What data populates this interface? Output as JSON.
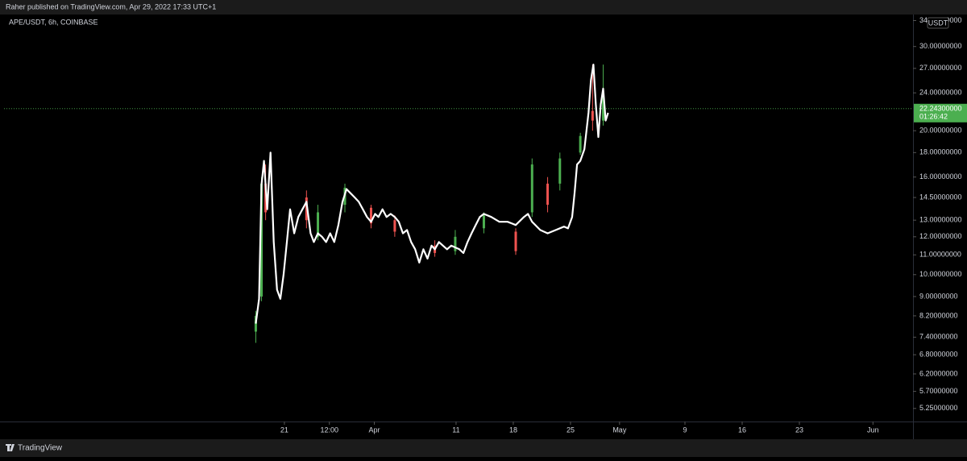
{
  "header": {
    "publisher": "Raher published on TradingView.com, Apr 29, 2022 17:33 UTC+1"
  },
  "footer": {
    "brand": "TradingView"
  },
  "chart_data": {
    "type": "candlestick",
    "title": "APE/USDT, 6h, COINBASE",
    "currency": "USDT",
    "log_scale": true,
    "up_color": "#4caf50",
    "down_color": "#ef5350",
    "ylim": [
      4.93,
      35.0
    ],
    "yticks": [
      {
        "value": 34,
        "label": "34.00000000"
      },
      {
        "value": 30,
        "label": "30.00000000"
      },
      {
        "value": 27,
        "label": "27.00000000"
      },
      {
        "value": 24,
        "label": "24.00000000"
      },
      {
        "value": 20,
        "label": "20.00000000"
      },
      {
        "value": 18,
        "label": "18.00000000"
      },
      {
        "value": 16,
        "label": "16.00000000"
      },
      {
        "value": 14.5,
        "label": "14.50000000"
      },
      {
        "value": 13,
        "label": "13.00000000"
      },
      {
        "value": 12,
        "label": "12.00000000"
      },
      {
        "value": 11,
        "label": "11.00000000"
      },
      {
        "value": 10,
        "label": "10.00000000"
      },
      {
        "value": 9,
        "label": "9.00000000"
      },
      {
        "value": 8.2,
        "label": "8.20000000"
      },
      {
        "value": 7.4,
        "label": "7.40000000"
      },
      {
        "value": 6.8,
        "label": "6.80000000"
      },
      {
        "value": 6.2,
        "label": "6.20000000"
      },
      {
        "value": 5.7,
        "label": "5.70000000"
      },
      {
        "value": 5.25,
        "label": "5.25000000"
      }
    ],
    "xlim": [
      45.7,
      156.9
    ],
    "xticks": [
      {
        "value": 80,
        "label": "21"
      },
      {
        "value": 85.5,
        "label": "12:00"
      },
      {
        "value": 91,
        "label": "Apr"
      },
      {
        "value": 101,
        "label": "11"
      },
      {
        "value": 108,
        "label": "18"
      },
      {
        "value": 115,
        "label": "25"
      },
      {
        "value": 121,
        "label": "May"
      },
      {
        "value": 129,
        "label": "9"
      },
      {
        "value": 136,
        "label": "16"
      },
      {
        "value": 143,
        "label": "23"
      },
      {
        "value": 152,
        "label": "Jun"
      }
    ],
    "current_price": {
      "value": 22.243,
      "label": "22.24300000",
      "countdown": "01:26:42"
    },
    "x": [
      76.5,
      77.2,
      77.7,
      82.7,
      84.1,
      87.4,
      90.6,
      93.5,
      98.4,
      100.9,
      104.4,
      108.3,
      110.3,
      112.2,
      113.7,
      116.2,
      117.7,
      119.0
    ],
    "open": [
      7.6,
      9,
      15.5,
      14.5,
      12,
      14,
      13.8,
      13,
      11.5,
      11.2,
      12.5,
      12.3,
      13.5,
      15.5,
      15.5,
      18,
      22,
      21
    ],
    "high": [
      8.4,
      16,
      17,
      15,
      14,
      15.5,
      14,
      13.3,
      11.8,
      12.4,
      13.5,
      12.5,
      17.5,
      16,
      18,
      19.8,
      27.5,
      27.5
    ],
    "low": [
      7.2,
      8.8,
      13,
      12.5,
      11.8,
      13.5,
      12.5,
      12,
      10.9,
      11,
      12.2,
      11,
      13.2,
      13.5,
      15,
      17.8,
      20,
      20.5
    ],
    "close": [
      8.2,
      15.5,
      13.5,
      13,
      13.5,
      15.2,
      12.8,
      12.3,
      11.1,
      12,
      13.3,
      11.2,
      17,
      14,
      17.5,
      19.5,
      21,
      24
    ],
    "line": {
      "color": "#ffffff",
      "x": [
        76.5,
        76.9,
        77.2,
        77.5,
        77.9,
        78.3,
        78.7,
        79.1,
        79.5,
        79.9,
        80.3,
        80.7,
        81.2,
        81.7,
        82.2,
        82.7,
        83.2,
        83.6,
        84.1,
        84.6,
        85.1,
        85.6,
        86.1,
        86.6,
        87.1,
        87.6,
        88.1,
        88.6,
        89.1,
        89.6,
        90.1,
        90.6,
        91.1,
        91.5,
        92.0,
        92.5,
        93.0,
        93.5,
        94.0,
        94.5,
        95.0,
        95.5,
        96.0,
        96.5,
        97.0,
        97.5,
        98.0,
        98.4,
        98.9,
        99.4,
        99.9,
        100.4,
        100.9,
        101.4,
        101.9,
        102.4,
        102.9,
        103.4,
        103.9,
        104.4,
        105.3,
        106.3,
        107.3,
        108.3,
        109.3,
        109.8,
        110.3,
        111.3,
        112.2,
        113.2,
        114.2,
        114.7,
        115.2,
        115.5,
        115.8,
        116.2,
        116.7,
        117.2,
        117.5,
        117.8,
        118.1,
        118.4,
        118.7,
        119.0,
        119.3,
        119.6
      ],
      "values": [
        7.9,
        8.9,
        15.4,
        17.3,
        13.7,
        18.0,
        11.7,
        9.3,
        8.9,
        10.0,
        11.7,
        13.7,
        12.2,
        13.2,
        13.7,
        14.2,
        12.2,
        11.7,
        12.2,
        12.0,
        11.7,
        12.2,
        11.7,
        12.7,
        14.2,
        15.1,
        14.8,
        14.5,
        14.2,
        13.7,
        13.2,
        12.9,
        13.4,
        13.2,
        13.7,
        13.2,
        13.4,
        13.2,
        12.9,
        12.2,
        12.4,
        11.7,
        11.3,
        10.6,
        11.3,
        10.8,
        11.5,
        11.3,
        11.7,
        11.5,
        11.3,
        11.5,
        11.4,
        11.3,
        11.1,
        11.7,
        12.2,
        12.7,
        13.2,
        13.4,
        13.2,
        12.9,
        12.9,
        12.7,
        13.2,
        13.4,
        12.9,
        12.4,
        12.2,
        12.4,
        12.6,
        12.5,
        13.2,
        14.8,
        17.0,
        17.3,
        18.3,
        21.8,
        25.5,
        27.5,
        22.7,
        19.4,
        22.7,
        24.5,
        21.0,
        21.8
      ]
    }
  }
}
